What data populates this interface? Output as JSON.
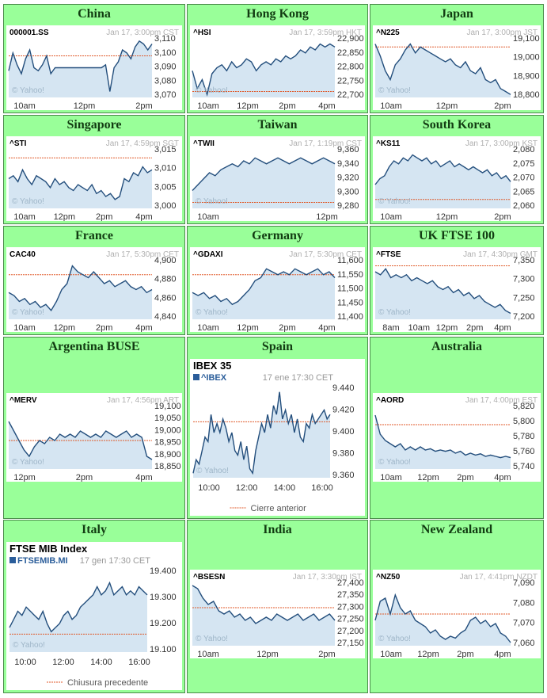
{
  "theme": {
    "cell_bg": "#99ff99",
    "cell_border": "#4a8a4a",
    "line": "#234e7c",
    "fill": "#d5e5f2",
    "prev_close": "#e05a2a"
  },
  "yahoo_mark": "© Yahoo!",
  "regions": [
    {
      "key": "china",
      "title": "China",
      "symbol": "000001.SS",
      "stamp": "Jan 17, 3:00pm CST",
      "yticks": [
        "3,110",
        "3,100",
        "3,090",
        "3,080",
        "3,070"
      ],
      "xticks": [
        "10am",
        "12pm",
        "2pm"
      ]
    },
    {
      "key": "hongkong",
      "title": "Hong Kong",
      "symbol": "^HSI",
      "stamp": "Jan 17, 3:59pm HKT",
      "yticks": [
        "22,900",
        "22,850",
        "22,800",
        "22,750",
        "22,700"
      ],
      "xticks": [
        "10am",
        "12pm",
        "2pm",
        "4pm"
      ]
    },
    {
      "key": "japan",
      "title": "Japan",
      "symbol": "^N225",
      "stamp": "Jan 17, 3:00pm JST",
      "yticks": [
        "19,100",
        "19,000",
        "18,900",
        "18,800"
      ],
      "xticks": [
        "10am",
        "12pm",
        "2pm"
      ]
    },
    {
      "key": "singapore",
      "title": "Singapore",
      "symbol": "^STI",
      "stamp": "Jan 17, 4:59pm SGT",
      "yticks": [
        "3,015",
        "3,010",
        "3,005",
        "3,000"
      ],
      "xticks": [
        "10am",
        "12pm",
        "2pm",
        "4pm"
      ]
    },
    {
      "key": "taiwan",
      "title": "Taiwan",
      "symbol": "^TWII",
      "stamp": "Jan 17, 1:19pm CST",
      "yticks": [
        "9,360",
        "9,340",
        "9,320",
        "9,300",
        "9,280"
      ],
      "xticks": [
        "10am",
        "12pm"
      ]
    },
    {
      "key": "southkorea",
      "title": "South Korea",
      "symbol": "^KS11",
      "stamp": "Jan 17, 3:00pm KST",
      "yticks": [
        "2,080",
        "2,075",
        "2,070",
        "2,065",
        "2,060"
      ],
      "xticks": [
        "10am",
        "12pm",
        "2pm"
      ]
    },
    {
      "key": "france",
      "title": "France",
      "symbol": "CAC40",
      "stamp": "Jan 17, 5:30pm CET",
      "yticks": [
        "4,900",
        "4,880",
        "4,860",
        "4,840"
      ],
      "xticks": [
        "10am",
        "12pm",
        "2pm",
        "4pm"
      ]
    },
    {
      "key": "germany",
      "title": "Germany",
      "symbol": "^GDAXI",
      "stamp": "Jan 17, 5:30pm CET",
      "yticks": [
        "11,600",
        "11,550",
        "11,500",
        "11,450",
        "11,400"
      ],
      "xticks": [
        "10am",
        "12pm",
        "2pm",
        "4pm"
      ]
    },
    {
      "key": "uk",
      "title": "UK FTSE 100",
      "symbol": "^FTSE",
      "stamp": "Jan 17, 4:30pm GMT",
      "yticks": [
        "7,350",
        "7,300",
        "7,250",
        "7,200"
      ],
      "xticks": [
        "8am",
        "10am",
        "12pm",
        "2pm",
        "4pm"
      ]
    },
    {
      "key": "argentina",
      "title": "Argentina BUSE",
      "symbol": "^MERV",
      "stamp": "Jan 17, 4:56pm ART",
      "yticks": [
        "19,100",
        "19,050",
        "19,000",
        "18,950",
        "18,900",
        "18,850"
      ],
      "xticks": [
        "12pm",
        "2pm",
        "4pm"
      ]
    },
    {
      "key": "spain",
      "title": "Spain",
      "big_title": "IBEX 35",
      "symbol": "^IBEX",
      "stamp": "17 ene 17:30 CET",
      "yticks": [
        "9.440",
        "9.420",
        "9.400",
        "9.380",
        "9.360"
      ],
      "xticks": [
        "10:00",
        "12:00",
        "14:00",
        "16:00"
      ],
      "legend": "Cierre anterior",
      "yahoo": "© Yahoo!"
    },
    {
      "key": "australia",
      "title": "Australia",
      "symbol": "^AORD",
      "stamp": "Jan 17, 4:00pm EST",
      "yticks": [
        "5,820",
        "5,800",
        "5,780",
        "5,760",
        "5,740"
      ],
      "xticks": [
        "10am",
        "12pm",
        "2pm",
        "4pm"
      ]
    },
    {
      "key": "italy",
      "title": "Italy",
      "big_title": "FTSE MIB Index",
      "symbol": "FTSEMIB.MI",
      "stamp": "17 gen 17:30 CET",
      "yticks": [
        "19.400",
        "19.300",
        "19.200",
        "19.100"
      ],
      "xticks": [
        "10:00",
        "12:00",
        "14:00",
        "16:00"
      ],
      "legend": "Chiusura precedente",
      "yahoo": "© Yahoo!"
    },
    {
      "key": "india",
      "title": "India",
      "symbol": "^BSESN",
      "stamp": "Jan 17, 3:30pm IST",
      "yticks": [
        "27,400",
        "27,350",
        "27,300",
        "27,250",
        "27,200",
        "27,150"
      ],
      "xticks": [
        "10am",
        "12pm",
        "2pm"
      ]
    },
    {
      "key": "newzealand",
      "title": "New Zealand",
      "symbol": "^NZ50",
      "stamp": "Jan 17, 4:41pm NZDT",
      "yticks": [
        "7,090",
        "7,080",
        "7,070",
        "7,060"
      ],
      "xticks": [
        "10am",
        "12pm",
        "2pm",
        "4pm"
      ]
    }
  ]
}
